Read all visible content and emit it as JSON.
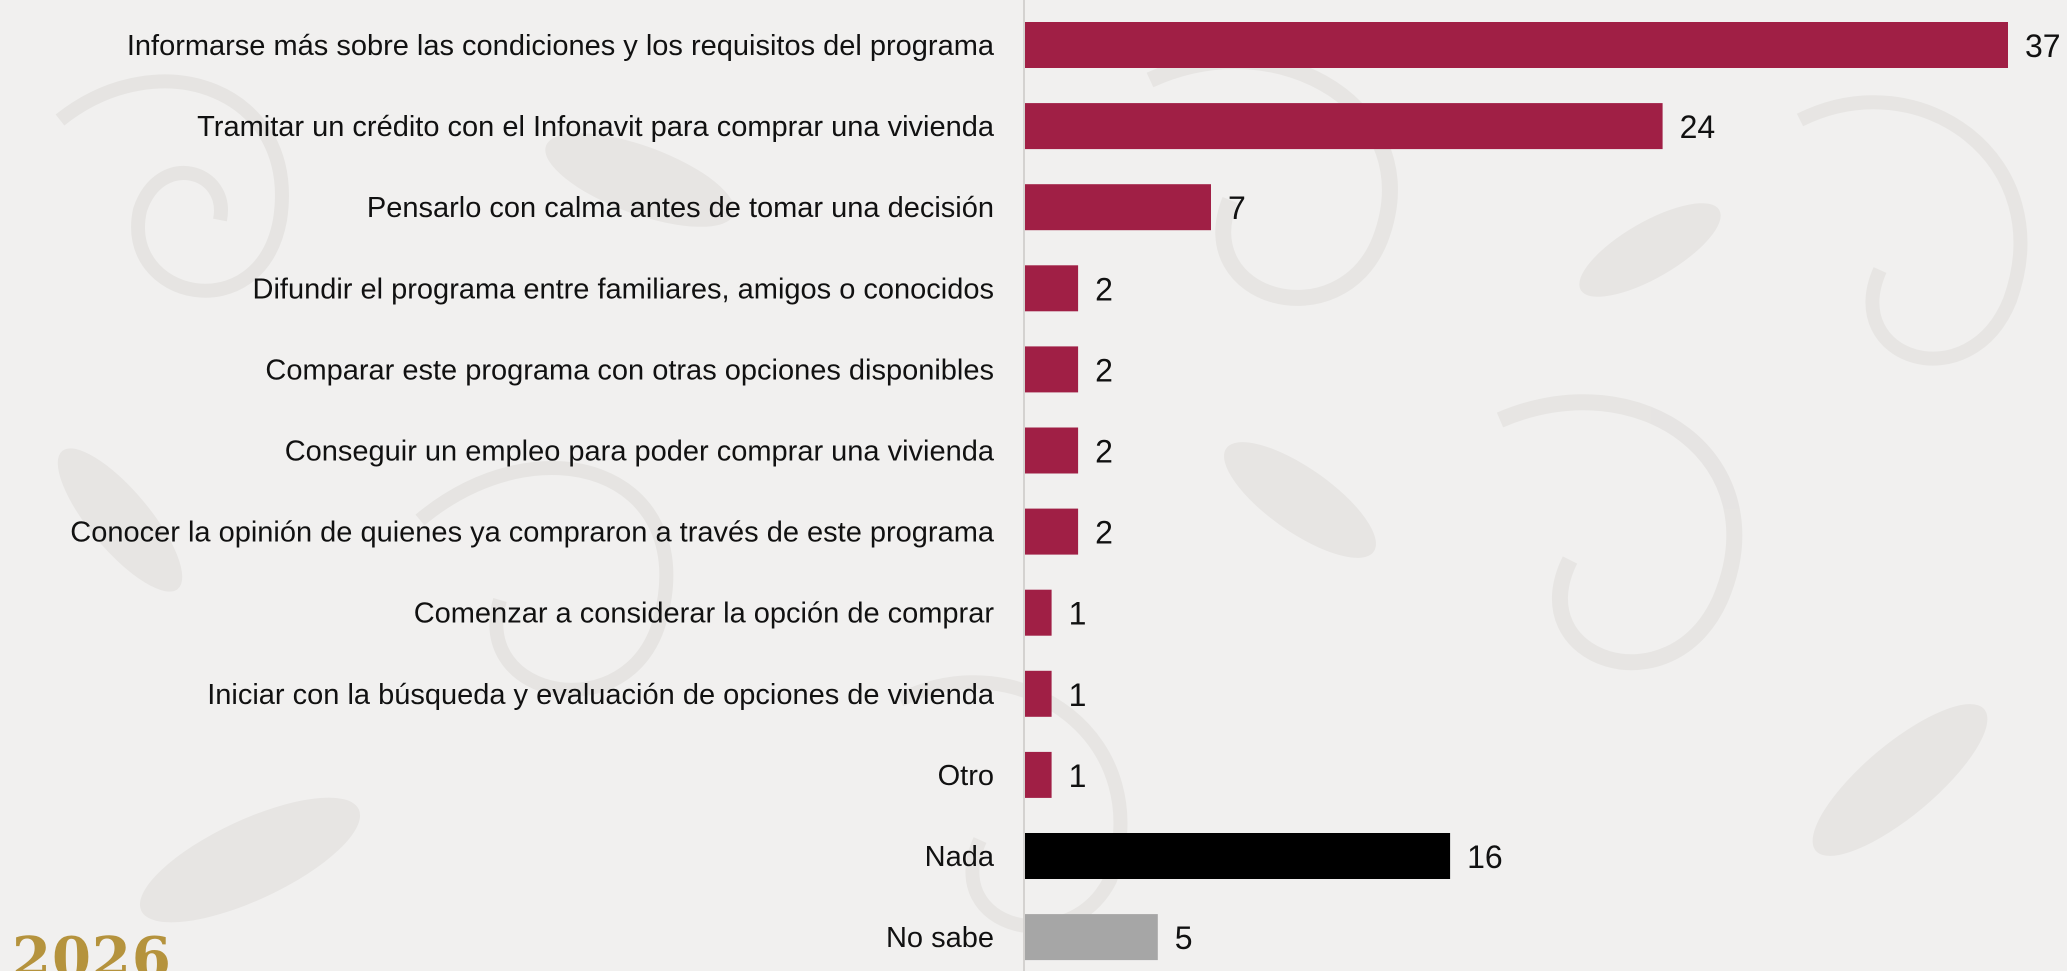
{
  "chart_data": {
    "type": "bar",
    "orientation": "horizontal",
    "categories": [
      "Informarse más sobre las condiciones y los requisitos del programa",
      "Tramitar un crédito con el Infonavit para comprar una vivienda",
      "Pensarlo con calma antes de tomar una decisión",
      "Difundir el programa entre familiares, amigos o conocidos",
      "Comparar este programa con otras opciones disponibles",
      "Conseguir un empleo para poder comprar una vivienda",
      "Conocer la opinión de quienes ya compraron a través de este programa",
      "Comenzar a considerar la opción de comprar",
      "Iniciar con la búsqueda y evaluación de opciones de vivienda",
      "Otro",
      "Nada",
      "No sabe"
    ],
    "values": [
      37,
      24,
      7,
      2,
      2,
      2,
      2,
      1,
      1,
      1,
      16,
      5
    ],
    "value_labels": [
      "37",
      "24",
      "7",
      "2",
      "2",
      "2",
      "2",
      "1",
      "1",
      "1",
      "16",
      "5"
    ],
    "bar_colors": [
      "#a01f45",
      "#a01f45",
      "#a01f45",
      "#a01f45",
      "#a01f45",
      "#a01f45",
      "#a01f45",
      "#a01f45",
      "#a01f45",
      "#a01f45",
      "#000000",
      "#a6a6a6"
    ],
    "xlim": [
      0,
      37
    ],
    "grid": false,
    "legend": "none"
  },
  "colors": {
    "accent": "#a01f45",
    "nada": "#000000",
    "no_sabe": "#a6a6a6",
    "background": "#f1f0ef",
    "gold": "#b5933d"
  },
  "footer": {
    "year": "2026"
  }
}
